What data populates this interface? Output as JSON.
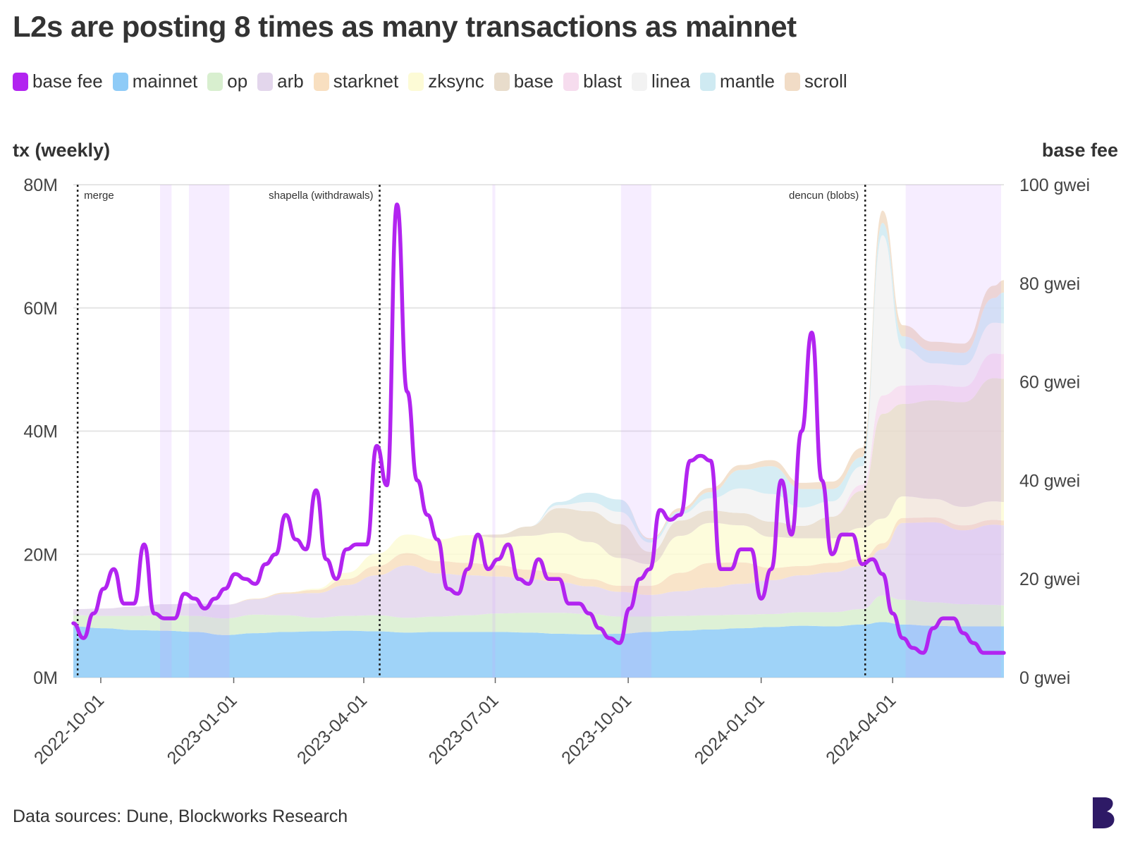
{
  "title": "L2s are posting 8 times as many transactions as mainnet",
  "source": "Data sources: Dune, Blockworks Research",
  "colors": {
    "base_fee": "#b224f0",
    "mainnet": "#8ecbf7",
    "op": "#d8efcf",
    "arb": "#e3d6ec",
    "starknet": "#f8dfc0",
    "zksync": "#fdfbd6",
    "base": "#e8dccb",
    "blast": "#f6dcee",
    "linea": "#f2f2f2",
    "mantle": "#cfeaf2",
    "scroll": "#f1dcc6",
    "highlight": "#cc99ff",
    "grid": "#e5e5e5",
    "logo": "#2e1a66"
  },
  "chart_data": {
    "type": "area",
    "ylabel_left": "tx (weekly)",
    "ylabel_right": "base fee",
    "xlim": [
      "2022-09-12",
      "2024-06-17"
    ],
    "ylim_left": [
      0,
      80000000
    ],
    "ylim_right": [
      0,
      100
    ],
    "yticks_left": [
      {
        "value": 0,
        "label": "0M"
      },
      {
        "value": 20000000,
        "label": "20M"
      },
      {
        "value": 40000000,
        "label": "40M"
      },
      {
        "value": 60000000,
        "label": "60M"
      },
      {
        "value": 80000000,
        "label": "80M"
      }
    ],
    "yticks_right": [
      {
        "value": 0,
        "label": "0 gwei"
      },
      {
        "value": 20,
        "label": "20 gwei"
      },
      {
        "value": 40,
        "label": "40 gwei"
      },
      {
        "value": 60,
        "label": "60 gwei"
      },
      {
        "value": 80,
        "label": "80 gwei"
      },
      {
        "value": 100,
        "label": "100 gwei"
      }
    ],
    "xticks": [
      "2022-10-01",
      "2023-01-01",
      "2023-04-01",
      "2023-07-01",
      "2023-10-01",
      "2024-01-01",
      "2024-04-01"
    ],
    "grid": true,
    "legend_position": "top-left",
    "legend": [
      {
        "key": "base_fee",
        "label": "base fee"
      },
      {
        "key": "mainnet",
        "label": "mainnet"
      },
      {
        "key": "op",
        "label": "op"
      },
      {
        "key": "arb",
        "label": "arb"
      },
      {
        "key": "starknet",
        "label": "starknet"
      },
      {
        "key": "zksync",
        "label": "zksync"
      },
      {
        "key": "base",
        "label": "base"
      },
      {
        "key": "blast",
        "label": "blast"
      },
      {
        "key": "linea",
        "label": "linea"
      },
      {
        "key": "mantle",
        "label": "mantle"
      },
      {
        "key": "scroll",
        "label": "scroll"
      }
    ],
    "events": [
      {
        "date": "2022-09-15",
        "label": "merge"
      },
      {
        "date": "2023-04-12",
        "label": "shapella (withdrawals)"
      },
      {
        "date": "2024-03-13",
        "label": "dencun (blobs)"
      }
    ],
    "highlight_ranges": [
      [
        "2022-11-11",
        "2022-11-19"
      ],
      [
        "2022-12-01",
        "2022-12-29"
      ],
      [
        "2023-06-29",
        "2023-07-01"
      ],
      [
        "2023-09-26",
        "2023-10-17"
      ],
      [
        "2024-04-10",
        "2024-06-15"
      ]
    ],
    "stack_dates": [
      "2022-09-12",
      "2022-10-03",
      "2022-10-24",
      "2022-11-14",
      "2022-12-05",
      "2022-12-26",
      "2023-01-16",
      "2023-02-06",
      "2023-02-27",
      "2023-03-20",
      "2023-04-10",
      "2023-05-01",
      "2023-05-22",
      "2023-06-12",
      "2023-07-03",
      "2023-07-24",
      "2023-08-14",
      "2023-09-04",
      "2023-09-25",
      "2023-10-16",
      "2023-11-06",
      "2023-11-27",
      "2023-12-18",
      "2024-01-08",
      "2024-01-29",
      "2024-02-19",
      "2024-03-11",
      "2024-03-25",
      "2024-04-08",
      "2024-04-29",
      "2024-05-20",
      "2024-06-10",
      "2024-06-17"
    ],
    "series": [
      {
        "name": "mainnet",
        "key": "mainnet",
        "values": [
          8.3,
          8.0,
          7.7,
          7.6,
          7.4,
          6.9,
          7.2,
          7.4,
          7.5,
          7.6,
          7.5,
          7.3,
          7.4,
          7.4,
          7.4,
          7.3,
          7.1,
          7.0,
          7.1,
          7.4,
          7.6,
          7.8,
          8.0,
          8.2,
          8.4,
          8.3,
          8.6,
          9.0,
          8.6,
          8.4,
          8.3,
          8.3,
          8.3
        ]
      },
      {
        "name": "op",
        "key": "op",
        "values": [
          1.8,
          2.0,
          2.3,
          2.5,
          2.6,
          2.7,
          3.0,
          2.7,
          2.2,
          2.4,
          2.6,
          2.4,
          2.5,
          2.7,
          3.0,
          3.2,
          3.4,
          3.3,
          2.8,
          2.5,
          2.4,
          2.3,
          2.2,
          2.1,
          2.2,
          2.3,
          2.5,
          4.3,
          4.0,
          3.8,
          3.6,
          3.5,
          3.4
        ]
      },
      {
        "name": "arb",
        "key": "arb",
        "values": [
          1.0,
          1.2,
          1.5,
          1.8,
          2.0,
          2.2,
          2.5,
          3.5,
          4.0,
          5.0,
          6.5,
          8.5,
          7.0,
          6.5,
          6.0,
          5.5,
          5.0,
          4.5,
          4.0,
          3.5,
          4.0,
          4.5,
          5.0,
          5.5,
          6.0,
          6.5,
          7.0,
          7.5,
          12.5,
          13.0,
          12.0,
          13.0,
          13.0
        ]
      },
      {
        "name": "starknet",
        "key": "starknet",
        "values": [
          0,
          0,
          0,
          0,
          0,
          0,
          0.1,
          0.2,
          0.5,
          1.0,
          1.5,
          2.0,
          2.0,
          2.0,
          1.8,
          1.5,
          1.5,
          1.2,
          1.0,
          1.5,
          3.0,
          4.0,
          3.5,
          2.0,
          1.5,
          1.5,
          1.2,
          1.0,
          0.8,
          0.8,
          0.8,
          0.8,
          0.8
        ]
      },
      {
        "name": "zksync",
        "key": "zksync",
        "values": [
          0,
          0,
          0,
          0,
          0,
          0,
          0,
          0,
          0.2,
          1.0,
          2.0,
          3.0,
          3.5,
          4.5,
          4.5,
          5.5,
          6.5,
          6.0,
          4.5,
          3.5,
          6.0,
          6.5,
          6.0,
          5.0,
          4.5,
          4.0,
          5.0,
          4.0,
          3.5,
          3.0,
          3.0,
          3.0,
          3.0
        ]
      },
      {
        "name": "base",
        "key": "base",
        "values": [
          0,
          0,
          0,
          0,
          0,
          0,
          0,
          0,
          0,
          0,
          0,
          0,
          0,
          0,
          0.5,
          1.5,
          4.0,
          5.0,
          5.5,
          2.0,
          2.5,
          2.0,
          2.0,
          2.5,
          2.0,
          3.5,
          6.0,
          17.0,
          15.0,
          16.0,
          17.0,
          20.0,
          20.0
        ]
      },
      {
        "name": "blast",
        "key": "blast",
        "values": [
          0,
          0,
          0,
          0,
          0,
          0,
          0,
          0,
          0,
          0,
          0,
          0,
          0,
          0,
          0,
          0,
          0,
          0,
          0,
          0,
          0,
          0,
          0,
          0,
          0,
          0,
          1.0,
          3.0,
          3.0,
          2.5,
          2.5,
          4.0,
          4.0
        ]
      },
      {
        "name": "linea",
        "key": "linea",
        "values": [
          0,
          0,
          0,
          0,
          0,
          0,
          0,
          0,
          0,
          0,
          0,
          0,
          0,
          0,
          0,
          0,
          0.5,
          1.5,
          2.0,
          1.5,
          1.0,
          2.0,
          4.0,
          4.5,
          3.0,
          2.5,
          3.0,
          26.0,
          6.0,
          3.5,
          3.5,
          5.0,
          5.0
        ]
      },
      {
        "name": "mantle",
        "key": "mantle",
        "values": [
          0,
          0,
          0,
          0,
          0,
          0,
          0,
          0,
          0,
          0,
          0,
          0,
          0,
          0,
          0,
          0,
          0.5,
          1.5,
          2.0,
          0.5,
          0.5,
          1.0,
          3.0,
          4.5,
          3.0,
          2.0,
          1.5,
          2.0,
          2.0,
          2.0,
          2.0,
          4.0,
          5.0
        ]
      },
      {
        "name": "scroll",
        "key": "scroll",
        "values": [
          0,
          0,
          0,
          0,
          0,
          0,
          0,
          0,
          0,
          0,
          0,
          0,
          0,
          0,
          0,
          0,
          0,
          0,
          0,
          0.2,
          0.5,
          0.7,
          0.8,
          1.0,
          1.0,
          1.2,
          1.5,
          2.0,
          1.8,
          1.5,
          1.5,
          2.0,
          2.0
        ]
      }
    ],
    "base_fee": {
      "name": "base fee",
      "key": "base_fee",
      "dates": [
        "2022-09-12",
        "2022-09-19",
        "2022-09-26",
        "2022-10-03",
        "2022-10-10",
        "2022-10-17",
        "2022-10-24",
        "2022-10-31",
        "2022-11-07",
        "2022-11-14",
        "2022-11-21",
        "2022-11-28",
        "2022-12-05",
        "2022-12-12",
        "2022-12-19",
        "2022-12-26",
        "2023-01-02",
        "2023-01-09",
        "2023-01-16",
        "2023-01-23",
        "2023-01-30",
        "2023-02-06",
        "2023-02-13",
        "2023-02-20",
        "2023-02-27",
        "2023-03-06",
        "2023-03-13",
        "2023-03-20",
        "2023-03-27",
        "2023-04-03",
        "2023-04-10",
        "2023-04-17",
        "2023-04-24",
        "2023-05-01",
        "2023-05-08",
        "2023-05-15",
        "2023-05-22",
        "2023-05-29",
        "2023-06-05",
        "2023-06-12",
        "2023-06-19",
        "2023-06-26",
        "2023-07-03",
        "2023-07-10",
        "2023-07-17",
        "2023-07-24",
        "2023-07-31",
        "2023-08-07",
        "2023-08-14",
        "2023-08-21",
        "2023-08-28",
        "2023-09-04",
        "2023-09-11",
        "2023-09-18",
        "2023-09-25",
        "2023-10-02",
        "2023-10-09",
        "2023-10-16",
        "2023-10-23",
        "2023-10-30",
        "2023-11-06",
        "2023-11-13",
        "2023-11-20",
        "2023-11-27",
        "2023-12-04",
        "2023-12-11",
        "2023-12-18",
        "2023-12-25",
        "2024-01-01",
        "2024-01-08",
        "2024-01-15",
        "2024-01-22",
        "2024-01-29",
        "2024-02-05",
        "2024-02-12",
        "2024-02-19",
        "2024-02-26",
        "2024-03-04",
        "2024-03-11",
        "2024-03-18",
        "2024-03-25",
        "2024-04-01",
        "2024-04-08",
        "2024-04-15",
        "2024-04-22",
        "2024-04-29",
        "2024-05-06",
        "2024-05-13",
        "2024-05-20",
        "2024-05-27",
        "2024-06-03",
        "2024-06-10",
        "2024-06-17"
      ],
      "values": [
        11,
        8,
        13,
        18,
        22,
        15,
        15,
        27,
        13,
        12,
        12,
        17,
        16,
        14,
        16,
        18,
        21,
        20,
        19,
        23,
        25,
        33,
        28,
        26,
        38,
        24,
        20,
        26,
        27,
        27,
        47,
        39,
        96,
        58,
        40,
        33,
        28,
        18,
        17,
        22,
        29,
        22,
        24,
        27,
        20,
        19,
        24,
        20,
        20,
        15,
        15,
        13,
        10,
        8,
        7,
        14,
        20,
        22,
        34,
        32,
        33,
        44,
        45,
        44,
        22,
        22,
        26,
        26,
        16,
        22,
        40,
        29,
        50,
        70,
        40,
        25,
        29,
        29,
        23,
        24,
        21,
        13,
        8,
        6,
        5,
        10,
        12,
        12,
        9,
        7,
        5,
        5,
        5
      ]
    }
  }
}
